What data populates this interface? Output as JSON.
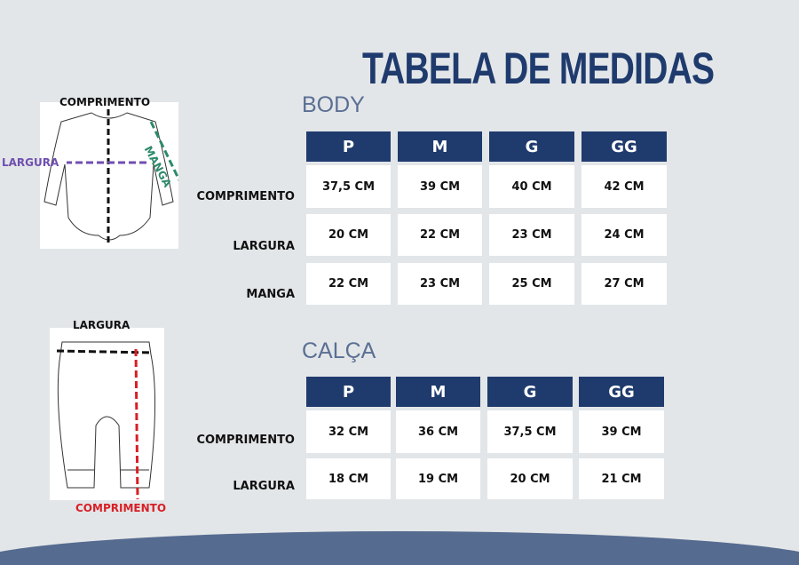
{
  "title": "TABELA DE MEDIDAS",
  "body": {
    "section": "BODY",
    "sizes": [
      "P",
      "M",
      "G",
      "GG"
    ],
    "rows": [
      {
        "label": "COMPRIMENTO",
        "values": [
          "37,5 CM",
          "39 CM",
          "40 CM",
          "42 CM"
        ]
      },
      {
        "label": "LARGURA",
        "values": [
          "20 CM",
          "22 CM",
          "23 CM",
          "24 CM"
        ]
      },
      {
        "label": "MANGA",
        "values": [
          "22 CM",
          "23 CM",
          "25 CM",
          "27 CM"
        ]
      }
    ],
    "diagram": {
      "length": "COMPRIMENTO",
      "width": "LARGURA",
      "sleeve": "MANGA"
    }
  },
  "calca": {
    "section": "CALÇA",
    "sizes": [
      "P",
      "M",
      "G",
      "GG"
    ],
    "rows": [
      {
        "label": "COMPRIMENTO",
        "values": [
          "32 CM",
          "36 CM",
          "37,5 CM",
          "39 CM"
        ]
      },
      {
        "label": "LARGURA",
        "values": [
          "18 CM",
          "19 CM",
          "20 CM",
          "21 CM"
        ]
      }
    ],
    "diagram": {
      "width": "LARGURA",
      "length": "COMPRIMENTO"
    }
  },
  "colors": {
    "navy": "#1f3b6e",
    "section": "#5a6f94",
    "width_line": "#6f4fb0",
    "sleeve_line": "#2e8a6a",
    "length_line_pants": "#d81f26",
    "wave": "#566b90"
  }
}
